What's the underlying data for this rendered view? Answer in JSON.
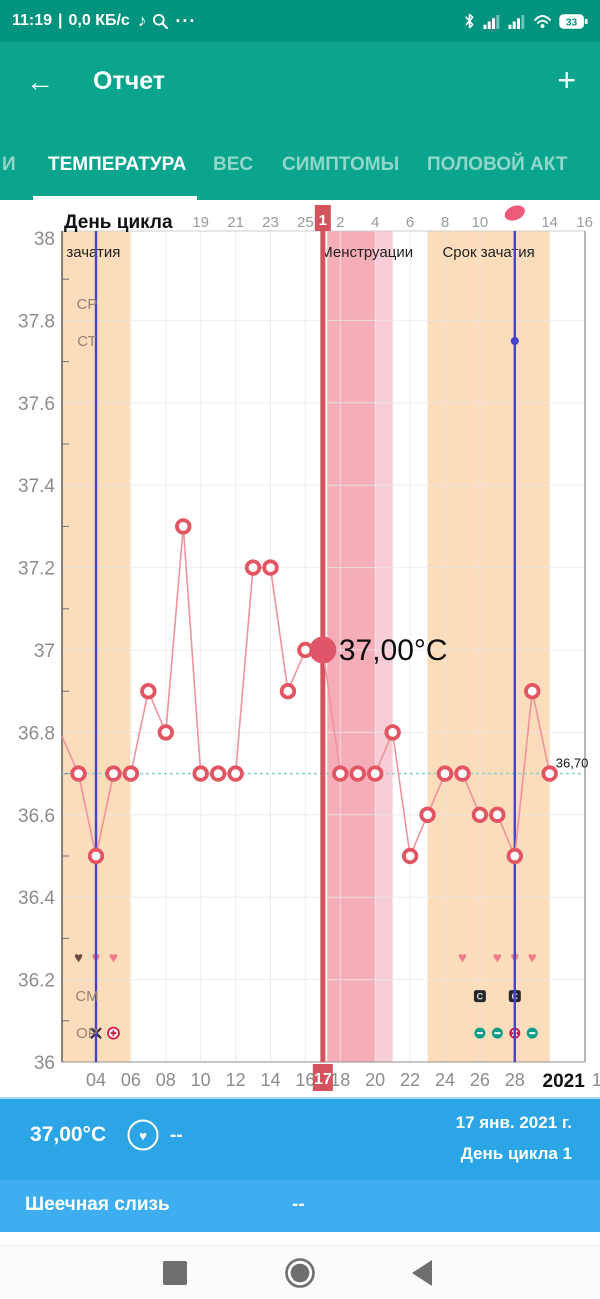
{
  "status_bar": {
    "time": "11:19",
    "sep": "|",
    "speed": "0,0 КБ/с",
    "note_icon": "♪",
    "dots": "···",
    "battery": "33"
  },
  "header": {
    "back_icon": "←",
    "title": "Отчет",
    "add_icon": "+"
  },
  "tabs": {
    "items": [
      {
        "label": "И",
        "active": false
      },
      {
        "label": "ТЕМПЕРАТУРА",
        "active": true
      },
      {
        "label": "ВЕС",
        "active": false
      },
      {
        "label": "СИМПТОМЫ",
        "active": false
      },
      {
        "label": "ПОЛОВОЙ АКТ",
        "active": false
      }
    ]
  },
  "chart_data": {
    "type": "line",
    "title": "День цикла",
    "y_axis": {
      "min": 36,
      "max": 38,
      "tick_step": 0.2,
      "labels": [
        "36",
        "36.2",
        "36.4",
        "36.6",
        "36.8",
        "37",
        "37.2",
        "37.4",
        "37.6",
        "37.8",
        "38"
      ]
    },
    "x_axis_top": {
      "label": "День цикла",
      "ticks": [
        {
          "day": 7,
          "label": "'"
        },
        {
          "day": 10,
          "label": "19"
        },
        {
          "day": 12,
          "label": "21"
        },
        {
          "day": 14,
          "label": "23"
        },
        {
          "day": 16,
          "label": "25"
        },
        {
          "day": 18,
          "label": "2"
        },
        {
          "day": 20,
          "label": "4"
        },
        {
          "day": 22,
          "label": "6"
        },
        {
          "day": 24,
          "label": "8"
        },
        {
          "day": 26,
          "label": "10"
        },
        {
          "day": 30,
          "label": "14"
        },
        {
          "day": 32,
          "label": "16"
        }
      ],
      "dot_day": 28
    },
    "x_axis_bottom": {
      "ticks": [
        "04",
        "06",
        "08",
        "10",
        "12",
        "14",
        "16",
        "18",
        "20",
        "22",
        "24",
        "26",
        "28"
      ],
      "tick_days": [
        4,
        6,
        8,
        10,
        12,
        14,
        16,
        18,
        20,
        22,
        24,
        26,
        28
      ],
      "year_label": "2021",
      "clipped_label": "1"
    },
    "current": {
      "day": 17,
      "top_label": "1",
      "bottom_label": "17"
    },
    "bands": [
      {
        "from": 2.0,
        "to": 5.95,
        "kind": "fertile",
        "label": "зачатия",
        "label_anchor": "start",
        "label_day": 2.3
      },
      {
        "from": 17.25,
        "to": 20.0,
        "kind": "mens_dark",
        "label": "Менструации",
        "label_anchor": "start",
        "label_day": 16.85
      },
      {
        "from": 20.0,
        "to": 21.0,
        "kind": "mens_light"
      },
      {
        "from": 23.0,
        "to": 30.0,
        "kind": "fertile",
        "label": "Срок зачатия",
        "label_anchor": "middle",
        "label_day": 26.5
      }
    ],
    "vlines": [
      {
        "day": 4
      },
      {
        "day": 28,
        "dot_temp": 37.75
      }
    ],
    "coverline": {
      "temp": 36.7,
      "label": "36,70",
      "label_day": 30.35
    },
    "series": [
      {
        "name": "temperature",
        "lead_in": {
          "day": 2.05,
          "temp": 36.79
        },
        "points": [
          [
            3,
            36.7
          ],
          [
            4,
            36.5
          ],
          [
            5,
            36.7
          ],
          [
            6,
            36.7
          ],
          [
            7,
            36.9
          ],
          [
            8,
            36.8
          ],
          [
            9,
            37.3
          ],
          [
            10,
            36.7
          ],
          [
            11,
            36.7
          ],
          [
            12,
            36.7
          ],
          [
            13,
            37.2
          ],
          [
            14,
            37.2
          ],
          [
            15,
            36.9
          ],
          [
            16,
            37.0
          ],
          [
            17,
            37.0
          ],
          [
            18,
            36.7
          ],
          [
            19,
            36.7
          ],
          [
            20,
            36.7
          ],
          [
            21,
            36.8
          ],
          [
            22,
            36.5
          ],
          [
            23,
            36.6
          ],
          [
            24,
            36.7
          ],
          [
            25,
            36.7
          ],
          [
            26,
            36.6
          ],
          [
            27,
            36.6
          ],
          [
            28,
            36.5
          ],
          [
            29,
            36.9
          ],
          [
            30,
            36.7
          ]
        ]
      }
    ],
    "selected_point": {
      "day": 17,
      "temp": 37.0,
      "label": "37,00°C"
    },
    "row_labels": [
      {
        "text": "СР",
        "temp": 37.84
      },
      {
        "text": "СТ",
        "temp": 37.75
      },
      {
        "text": "СМ",
        "temp": 36.16
      },
      {
        "text": "ОР",
        "temp": 36.07
      }
    ],
    "hearts": {
      "temp": 36.255,
      "glyph": "♥",
      "items": [
        {
          "day": 3,
          "variant": "dark"
        },
        {
          "day": 4,
          "variant": "pink"
        },
        {
          "day": 5,
          "variant": "pink"
        },
        {
          "day": 25,
          "variant": "pink"
        },
        {
          "day": 27,
          "variant": "pink"
        },
        {
          "day": 28,
          "variant": "pink"
        },
        {
          "day": 29,
          "variant": "pink"
        }
      ]
    },
    "cervical_mucus": {
      "temp": 36.16,
      "glyph": "C",
      "days": [
        26,
        28
      ]
    },
    "ovulation_tests": {
      "temp": 36.07,
      "items": [
        {
          "day": 4,
          "kind": "x"
        },
        {
          "day": 5,
          "kind": "plus"
        },
        {
          "day": 26,
          "kind": "minus"
        },
        {
          "day": 27,
          "kind": "minus"
        },
        {
          "day": 28,
          "kind": "positive"
        },
        {
          "day": 29,
          "kind": "minus"
        }
      ]
    },
    "colors": {
      "fertile_band": "#FBDCBB",
      "mens_dark": "#F5AEB8",
      "mens_light": "#F9CDD5",
      "current_line": "#D5525F",
      "blue_line": "#4343CB",
      "temp_line": "#F0939C",
      "marker": "#E25562",
      "selected": "#DF5668",
      "coverline": "#7FD0CE",
      "grid": "#E9E9E9",
      "axis_text": "#8C8C8C",
      "heart_pink": "#EF7B89",
      "heart_dark": "#6B4C43",
      "opk_teal": "#0D9C89",
      "opk_red": "#D41B44",
      "cm_dark": "#26262A",
      "row_label": "#9A8173"
    }
  },
  "info_panel": {
    "temp": "37,00°C",
    "heart_icon": "♥",
    "heart_value": "--",
    "date": "17 янв. 2021 г.",
    "cycle_day": "День цикла 1",
    "row2_label": "Шеечная слизь",
    "row2_value": "--"
  }
}
